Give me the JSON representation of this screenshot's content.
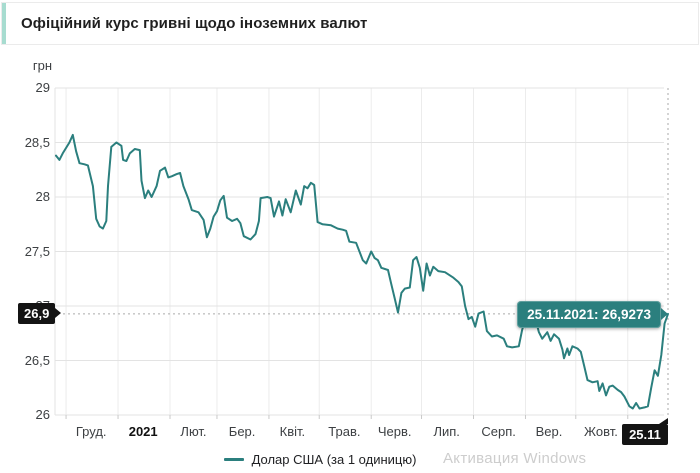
{
  "header": {
    "title": "Офіційний курс гривні щодо іноземних валют"
  },
  "watermark": {
    "text": "Активация Windows"
  },
  "colors": {
    "accent_teal": "#2b7f7e",
    "accent_soft": "#a7dcd0",
    "grid": "#e3e3e3",
    "grid_vertical": "#ececec",
    "dotted_guide": "#aaaaaa",
    "badge_black": "#141414"
  },
  "chart_data": {
    "type": "line",
    "title": "Офіційний курс гривні щодо іноземних валют",
    "xlabel": "",
    "ylabel": "грн",
    "series_name": "Долар США (за 1 одиницю)",
    "line_color": "#2b7f7e",
    "legend_position": "bottom",
    "grid": true,
    "ylim": [
      26,
      29
    ],
    "y_ticks": [
      {
        "v": 29,
        "label": "29"
      },
      {
        "v": 28.5,
        "label": "28,5"
      },
      {
        "v": 28,
        "label": "28"
      },
      {
        "v": 27.5,
        "label": "27,5"
      },
      {
        "v": 27,
        "label": "27"
      },
      {
        "v": 26.5,
        "label": "26,5"
      },
      {
        "v": 26,
        "label": "26"
      }
    ],
    "x_domain_days": [
      0,
      365
    ],
    "x_range_note": "днi вiд 25.11.2020 до 25.11.2021",
    "month_start_days": [
      6,
      37,
      68,
      96,
      127,
      157,
      188,
      218,
      249,
      280,
      310,
      341
    ],
    "x_month_labels": [
      {
        "label": "Груд.",
        "day": 21,
        "bold": false
      },
      {
        "label": "2021",
        "day": 52,
        "bold": true
      },
      {
        "label": "Лют.",
        "day": 82,
        "bold": false
      },
      {
        "label": "Бер.",
        "day": 111,
        "bold": false
      },
      {
        "label": "Квіт.",
        "day": 141,
        "bold": false
      },
      {
        "label": "Трав.",
        "day": 172,
        "bold": false
      },
      {
        "label": "Черв.",
        "day": 202,
        "bold": false
      },
      {
        "label": "Лип.",
        "day": 233,
        "bold": false
      },
      {
        "label": "Серп.",
        "day": 264,
        "bold": false
      },
      {
        "label": "Вер.",
        "day": 294,
        "bold": false
      },
      {
        "label": "Жовт.",
        "day": 325,
        "bold": false
      }
    ],
    "current": {
      "date_label": "25.11",
      "value_label": "26,9",
      "tooltip": "25.11.2021: 26,9273",
      "value": 26.9273,
      "day": 365
    },
    "points": [
      [
        0,
        28.38
      ],
      [
        2,
        28.34
      ],
      [
        4,
        28.4
      ],
      [
        8,
        28.5
      ],
      [
        10,
        28.57
      ],
      [
        12,
        28.42
      ],
      [
        14,
        28.31
      ],
      [
        17,
        28.3
      ],
      [
        19,
        28.29
      ],
      [
        22,
        28.1
      ],
      [
        24,
        27.8
      ],
      [
        26,
        27.73
      ],
      [
        28,
        27.71
      ],
      [
        30,
        27.78
      ],
      [
        31,
        28.1
      ],
      [
        33,
        28.46
      ],
      [
        36,
        28.5
      ],
      [
        39,
        28.47
      ],
      [
        40,
        28.34
      ],
      [
        42,
        28.33
      ],
      [
        44,
        28.4
      ],
      [
        47,
        28.44
      ],
      [
        50,
        28.43
      ],
      [
        51,
        28.15
      ],
      [
        53,
        27.99
      ],
      [
        55,
        28.06
      ],
      [
        57,
        28.0
      ],
      [
        60,
        28.1
      ],
      [
        62,
        28.24
      ],
      [
        65,
        28.27
      ],
      [
        67,
        28.18
      ],
      [
        69,
        28.19
      ],
      [
        72,
        28.21
      ],
      [
        74,
        28.22
      ],
      [
        76,
        28.1
      ],
      [
        79,
        27.98
      ],
      [
        81,
        27.88
      ],
      [
        85,
        27.86
      ],
      [
        88,
        27.79
      ],
      [
        90,
        27.63
      ],
      [
        92,
        27.71
      ],
      [
        94,
        27.82
      ],
      [
        96,
        27.87
      ],
      [
        98,
        27.97
      ],
      [
        100,
        28.01
      ],
      [
        102,
        27.81
      ],
      [
        105,
        27.78
      ],
      [
        108,
        27.8
      ],
      [
        110,
        27.76
      ],
      [
        112,
        27.64
      ],
      [
        116,
        27.61
      ],
      [
        119,
        27.66
      ],
      [
        121,
        27.78
      ],
      [
        122,
        27.99
      ],
      [
        126,
        28.0
      ],
      [
        128,
        27.99
      ],
      [
        130,
        27.82
      ],
      [
        133,
        27.96
      ],
      [
        135,
        27.83
      ],
      [
        137,
        27.98
      ],
      [
        140,
        27.86
      ],
      [
        143,
        28.06
      ],
      [
        146,
        27.93
      ],
      [
        148,
        28.1
      ],
      [
        150,
        28.08
      ],
      [
        152,
        28.13
      ],
      [
        154,
        28.11
      ],
      [
        156,
        27.77
      ],
      [
        159,
        27.75
      ],
      [
        164,
        27.74
      ],
      [
        168,
        27.71
      ],
      [
        171,
        27.7
      ],
      [
        173,
        27.69
      ],
      [
        175,
        27.59
      ],
      [
        179,
        27.58
      ],
      [
        183,
        27.42
      ],
      [
        185,
        27.39
      ],
      [
        188,
        27.5
      ],
      [
        190,
        27.44
      ],
      [
        192,
        27.42
      ],
      [
        194,
        27.35
      ],
      [
        198,
        27.33
      ],
      [
        200,
        27.2
      ],
      [
        202,
        27.07
      ],
      [
        204,
        26.94
      ],
      [
        206,
        27.12
      ],
      [
        208,
        27.16
      ],
      [
        211,
        27.17
      ],
      [
        213,
        27.42
      ],
      [
        215,
        27.45
      ],
      [
        217,
        27.35
      ],
      [
        219,
        27.14
      ],
      [
        221,
        27.39
      ],
      [
        223,
        27.28
      ],
      [
        225,
        27.36
      ],
      [
        228,
        27.32
      ],
      [
        232,
        27.31
      ],
      [
        237,
        27.26
      ],
      [
        240,
        27.22
      ],
      [
        242,
        27.18
      ],
      [
        244,
        27.0
      ],
      [
        246,
        26.88
      ],
      [
        248,
        26.9
      ],
      [
        250,
        26.81
      ],
      [
        252,
        26.93
      ],
      [
        255,
        26.95
      ],
      [
        257,
        26.77
      ],
      [
        260,
        26.72
      ],
      [
        263,
        26.73
      ],
      [
        267,
        26.7
      ],
      [
        269,
        26.63
      ],
      [
        272,
        26.62
      ],
      [
        276,
        26.63
      ],
      [
        278,
        26.78
      ],
      [
        281,
        26.93
      ],
      [
        283,
        27.01
      ],
      [
        286,
        26.88
      ],
      [
        288,
        26.76
      ],
      [
        290,
        26.7
      ],
      [
        293,
        26.76
      ],
      [
        295,
        26.68
      ],
      [
        297,
        26.74
      ],
      [
        300,
        26.7
      ],
      [
        302,
        26.6
      ],
      [
        303,
        26.52
      ],
      [
        305,
        26.61
      ],
      [
        306,
        26.55
      ],
      [
        308,
        26.63
      ],
      [
        311,
        26.61
      ],
      [
        313,
        26.58
      ],
      [
        315,
        26.45
      ],
      [
        317,
        26.32
      ],
      [
        320,
        26.3
      ],
      [
        323,
        26.31
      ],
      [
        324,
        26.22
      ],
      [
        326,
        26.29
      ],
      [
        328,
        26.18
      ],
      [
        330,
        26.26
      ],
      [
        332,
        26.27
      ],
      [
        335,
        26.23
      ],
      [
        337,
        26.21
      ],
      [
        339,
        26.17
      ],
      [
        342,
        26.08
      ],
      [
        344,
        26.06
      ],
      [
        346,
        26.11
      ],
      [
        348,
        26.06
      ],
      [
        351,
        26.07
      ],
      [
        353,
        26.08
      ],
      [
        355,
        26.25
      ],
      [
        357,
        26.41
      ],
      [
        359,
        26.36
      ],
      [
        361,
        26.55
      ],
      [
        363,
        26.84
      ],
      [
        365,
        26.9273
      ]
    ]
  }
}
